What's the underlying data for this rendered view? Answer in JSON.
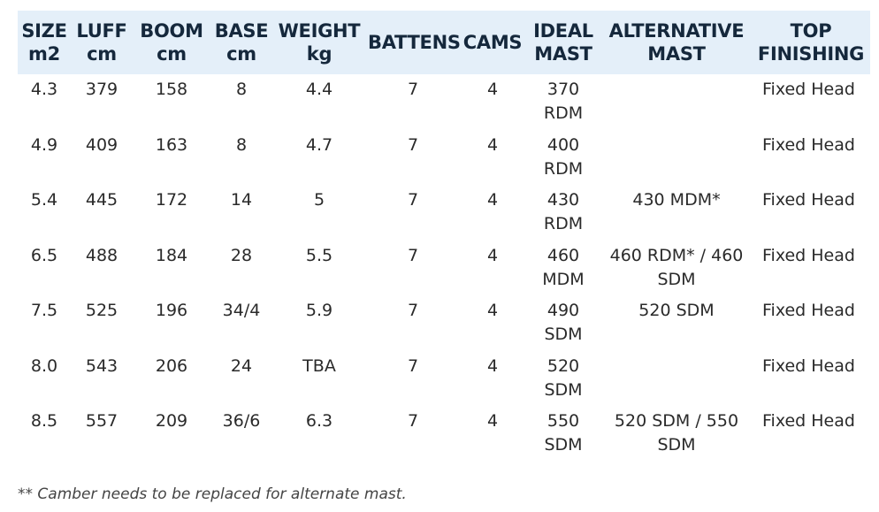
{
  "table": {
    "header": [
      [
        "SIZE",
        "m2"
      ],
      [
        "LUFF",
        "cm"
      ],
      [
        "BOOM",
        "cm"
      ],
      [
        "BASE",
        "cm"
      ],
      [
        "WEIGHT",
        "kg"
      ],
      [
        "BATTENS"
      ],
      [
        "CAMS"
      ],
      [
        "IDEAL",
        "MAST"
      ],
      [
        "ALTERNATIVE",
        "MAST"
      ],
      [
        "TOP",
        "FINISHING"
      ]
    ],
    "rows": [
      [
        "4.3",
        "379",
        "158",
        "8",
        "4.4",
        "7",
        "4",
        "370 RDM",
        "",
        "Fixed Head"
      ],
      [
        "4.9",
        "409",
        "163",
        "8",
        "4.7",
        "7",
        "4",
        "400 RDM",
        "",
        "Fixed Head"
      ],
      [
        "5.4",
        "445",
        "172",
        "14",
        "5",
        "7",
        "4",
        "430 RDM",
        "430 MDM*",
        "Fixed Head"
      ],
      [
        "6.5",
        "488",
        "184",
        "28",
        "5.5",
        "7",
        "4",
        "460 MDM",
        "460 RDM* / 460 SDM",
        "Fixed Head"
      ],
      [
        "7.5",
        "525",
        "196",
        "34/4",
        "5.9",
        "7",
        "4",
        "490 SDM",
        "520 SDM",
        "Fixed Head"
      ],
      [
        "8.0",
        "543",
        "206",
        "24",
        "TBA",
        "7",
        "4",
        "520 SDM",
        "",
        "Fixed Head"
      ],
      [
        "8.5",
        "557",
        "209",
        "36/6",
        "6.3",
        "7",
        "4",
        "550 SDM",
        "520 SDM / 550 SDM",
        "Fixed Head"
      ]
    ]
  },
  "footnote": "** Camber needs to be replaced for alternate mast."
}
